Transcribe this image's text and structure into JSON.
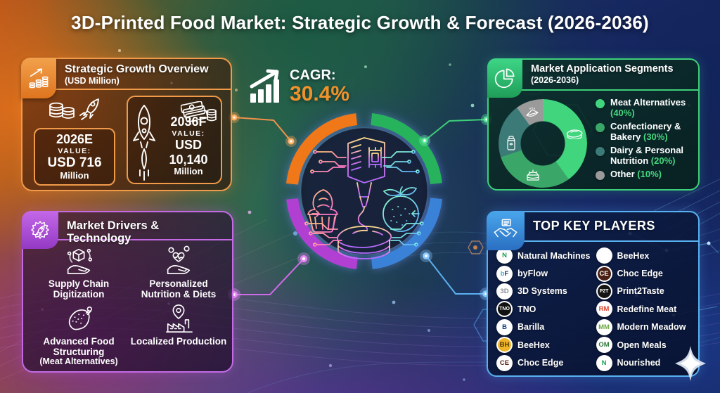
{
  "title": "3D-Printed Food Market: Strategic Growth & Forecast (2026-2036)",
  "cagr": {
    "label": "CAGR:",
    "value": "30.4%",
    "accent_color": "#f0922b",
    "icon": "bar-chart-arrow-icon"
  },
  "growth_panel": {
    "title": "Strategic Growth Overview",
    "subtitle": "(USD Million)",
    "accent_color": "#f09a4a",
    "icon": "coins-growth-icon",
    "cards": [
      {
        "year": "2026E",
        "label": "VALUE:",
        "value": "USD 716",
        "unit": "Million",
        "icons": [
          "coins-icon",
          "rocket-icon"
        ]
      },
      {
        "year": "2036F",
        "label": "VALUE:",
        "value": "USD 10,140",
        "unit": "Million",
        "icons": [
          "rocket-icon",
          "banknotes-icon"
        ]
      }
    ]
  },
  "segments_panel": {
    "title": "Market Application Segments",
    "subtitle": "(2026-2036)",
    "accent_color": "#3ecf7a",
    "icon": "pie-chart-icon"
  },
  "chart_data": {
    "type": "pie",
    "donut": true,
    "title": "Market Application Segments (2026-2036)",
    "start_angle_deg": 0,
    "direction": "clockwise",
    "legend_position": "right",
    "pct_label_color": "#45d87e",
    "segments": [
      {
        "label": "Meat Alternatives",
        "value": 40,
        "pct_text": "(40%)",
        "color": "#41d67e",
        "icon": "steak-icon"
      },
      {
        "label": "Confectionery & Bakery",
        "value": 30,
        "pct_text": "(30%)",
        "color": "#3aa768",
        "icon": "cake-icon"
      },
      {
        "label": "Dairy & Personal Nutrition",
        "value": 20,
        "pct_text": "(20%)",
        "color": "#3b7a77",
        "icon": "shaker-bottle-icon"
      },
      {
        "label": "Other",
        "value": 10,
        "pct_text": "(10%)",
        "color": "#9a9a9a",
        "icon": "pie-slice-icon"
      }
    ]
  },
  "drivers_panel": {
    "title": "Market Drivers & Technology",
    "accent_color": "#c36ae4",
    "icon": "gear-rocket-icon",
    "items": [
      {
        "label": "Supply Chain Digitization",
        "sublabel": "",
        "icon": "hand-box-icon"
      },
      {
        "label": "Personalized Nutrition & Diets",
        "sublabel": "",
        "icon": "hand-heart-icon"
      },
      {
        "label": "Advanced Food Structuring",
        "sublabel": "(Meat Alternatives)",
        "icon": "meat-icon"
      },
      {
        "label": "Localized Production",
        "sublabel": "",
        "icon": "factory-pin-icon"
      }
    ]
  },
  "players_panel": {
    "title": "TOP KEY PLAYERS",
    "accent_color": "#59b1f0",
    "icon": "handshake-icon",
    "columns": [
      [
        {
          "name": "Natural Machines",
          "badge": "N",
          "badge_bg": "#ffffff",
          "badge_fg": "#1e9e53"
        },
        {
          "name": "byFlow",
          "badge": "bF",
          "badge_bg": "#ffffff",
          "badge_fg": "#47a9e0",
          "badge_fg2": "#16305e"
        },
        {
          "name": "3D Systems",
          "badge": "3D",
          "badge_bg": "#ffffff",
          "badge_fg": "#8a9097"
        },
        {
          "name": "TNO",
          "badge": "TNO",
          "badge_bg": "#111111",
          "badge_fg": "#ffffff"
        },
        {
          "name": "Barilla",
          "badge": "B",
          "badge_bg": "#ffffff",
          "badge_fg": "#123a7a"
        },
        {
          "name": "BeeHex",
          "badge": "BH",
          "badge_bg": "#f0b429",
          "badge_fg": "#4a3405"
        },
        {
          "name": "Choc Edge",
          "badge": "CE",
          "badge_bg": "#ffffff",
          "badge_fg": "#5e1f12"
        }
      ],
      [
        {
          "name": "BeeHex",
          "badge": "",
          "badge_icon": "bee-icon",
          "badge_bg": "#ffffff",
          "badge_fg": "#6b5410"
        },
        {
          "name": "Choc Edge",
          "badge": "CE",
          "badge_bg": "#4a2014",
          "badge_fg": "#ffffff"
        },
        {
          "name": "Print2Taste",
          "badge": "P2T",
          "badge_bg": "#141414",
          "badge_fg": "#ffffff"
        },
        {
          "name": "Redefine Meat",
          "badge": "RM",
          "badge_bg": "#ffffff",
          "badge_fg": "#d9452e"
        },
        {
          "name": "Modern Meadow",
          "badge": "MM",
          "badge_bg": "#ffffff",
          "badge_fg": "#6aa83f"
        },
        {
          "name": "Open Meals",
          "badge": "OM",
          "badge_bg": "#ffffff",
          "badge_fg": "#2d7a3a"
        },
        {
          "name": "Nourished",
          "badge": "N",
          "badge_bg": "#ffffff",
          "badge_fg": "#1e9e53"
        }
      ]
    ]
  },
  "center_graphic": {
    "icon": "3d-food-printer-illustration",
    "ring_colors": [
      "#3a82d8",
      "#b13fd1",
      "#f07818",
      "#27b35c"
    ]
  },
  "decor": {
    "sparkle_icon": "sparkle-icon"
  }
}
